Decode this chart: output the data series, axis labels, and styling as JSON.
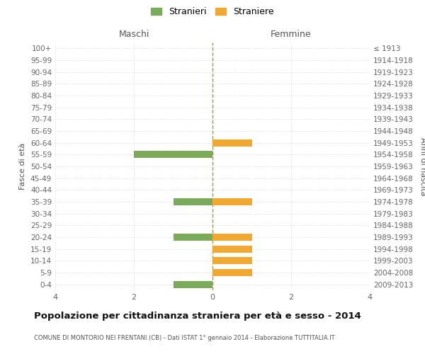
{
  "age_groups": [
    "100+",
    "95-99",
    "90-94",
    "85-89",
    "80-84",
    "75-79",
    "70-74",
    "65-69",
    "60-64",
    "55-59",
    "50-54",
    "45-49",
    "40-44",
    "35-39",
    "30-34",
    "25-29",
    "20-24",
    "15-19",
    "10-14",
    "5-9",
    "0-4"
  ],
  "birth_years": [
    "≤ 1913",
    "1914-1918",
    "1919-1923",
    "1924-1928",
    "1929-1933",
    "1934-1938",
    "1939-1943",
    "1944-1948",
    "1949-1953",
    "1954-1958",
    "1959-1963",
    "1964-1968",
    "1969-1973",
    "1974-1978",
    "1979-1983",
    "1984-1988",
    "1989-1993",
    "1994-1998",
    "1999-2003",
    "2004-2008",
    "2009-2013"
  ],
  "maschi": [
    0,
    0,
    0,
    0,
    0,
    0,
    0,
    0,
    0,
    2,
    0,
    0,
    0,
    1,
    0,
    0,
    1,
    0,
    0,
    0,
    1
  ],
  "femmine": [
    0,
    0,
    0,
    0,
    0,
    0,
    0,
    0,
    1,
    0,
    0,
    0,
    0,
    1,
    0,
    0,
    1,
    1,
    1,
    1,
    0
  ],
  "color_maschi": "#7aaa5a",
  "color_femmine": "#f0a830",
  "color_grid": "#cccccc",
  "color_center_line": "#999966",
  "xlim": 4,
  "xlabel_left": "Maschi",
  "xlabel_right": "Femmine",
  "ylabel_left": "Fasce di età",
  "ylabel_right": "Anni di nascita",
  "title": "Popolazione per cittadinanza straniera per età e sesso - 2014",
  "subtitle": "COMUNE DI MONTORIO NEI FRENTANI (CB) - Dati ISTAT 1° gennaio 2014 - Elaborazione TUTTITALIA.IT",
  "legend_stranieri": "Stranieri",
  "legend_straniere": "Straniere",
  "background_color": "#ffffff",
  "plot_bg_color": "#ffffff"
}
